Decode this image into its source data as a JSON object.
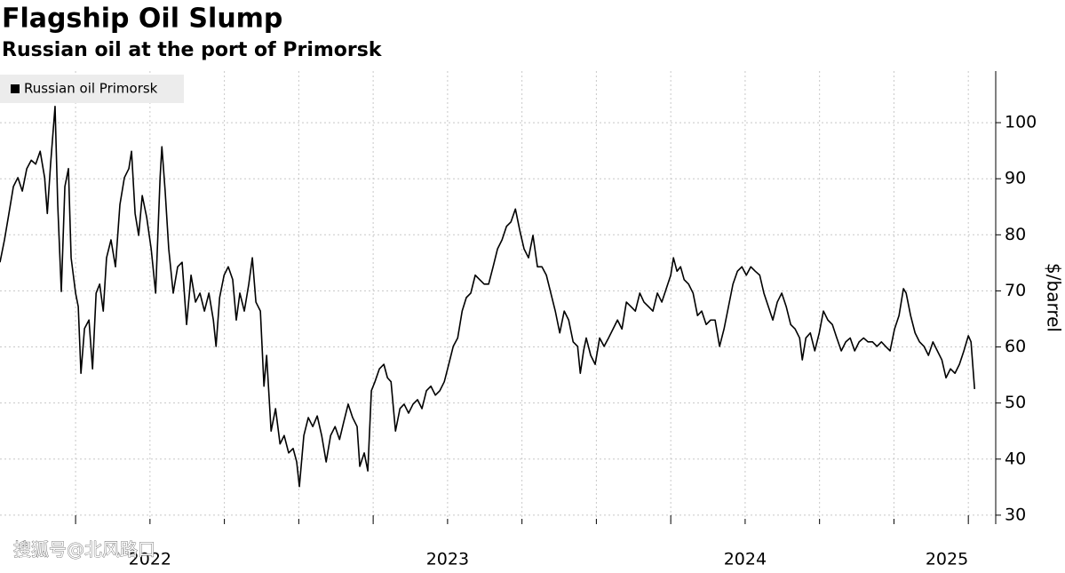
{
  "chart_data": {
    "type": "line",
    "title": "Flagship Oil Slump",
    "subtitle": "Russian oil at the port of Primorsk",
    "y_label": "$/barrel",
    "watermark": "搜狐号@北风路口",
    "xlim": [
      2021.746,
      2025.092
    ],
    "xticks": [
      2022,
      2023,
      2024,
      2025
    ],
    "x_minor_ticks": [
      2022.25,
      2022.5,
      2022.75,
      2023.25,
      2023.5,
      2023.75,
      2024.25,
      2024.5,
      2024.75
    ],
    "ylim": [
      28.4,
      109.2
    ],
    "yticks": [
      30,
      40,
      50,
      60,
      70,
      80,
      90,
      100
    ],
    "grid": true,
    "y_axis_side": "right",
    "legend": "top-left",
    "x": [
      2021.746,
      2021.761,
      2021.776,
      2021.791,
      2021.806,
      2021.821,
      2021.836,
      2021.851,
      2021.866,
      2021.881,
      2021.896,
      2021.905,
      2021.916,
      2021.931,
      2021.94,
      2021.952,
      2021.964,
      2021.976,
      2021.985,
      2022.0,
      2022.009,
      2022.018,
      2022.03,
      2022.045,
      2022.057,
      2022.069,
      2022.081,
      2022.093,
      2022.104,
      2022.119,
      2022.134,
      2022.149,
      2022.164,
      2022.179,
      2022.188,
      2022.2,
      2022.212,
      2022.224,
      2022.239,
      2022.254,
      2022.269,
      2022.284,
      2022.29,
      2022.301,
      2022.313,
      2022.328,
      2022.343,
      2022.358,
      2022.373,
      2022.388,
      2022.403,
      2022.418,
      2022.433,
      2022.448,
      2022.463,
      2022.472,
      2022.484,
      2022.499,
      2022.513,
      2022.528,
      2022.54,
      2022.552,
      2022.567,
      2022.582,
      2022.594,
      2022.606,
      2022.621,
      2022.633,
      2022.642,
      2022.657,
      2022.672,
      2022.687,
      2022.701,
      2022.716,
      2022.731,
      2022.743,
      2022.752,
      2022.767,
      2022.782,
      2022.797,
      2022.812,
      2022.827,
      2022.842,
      2022.857,
      2022.872,
      2022.887,
      2022.901,
      2022.916,
      2022.931,
      2022.946,
      2022.955,
      2022.97,
      2022.982,
      2022.994,
      2023.006,
      2023.021,
      2023.036,
      2023.048,
      2023.06,
      2023.075,
      2023.09,
      2023.104,
      2023.119,
      2023.134,
      2023.149,
      2023.164,
      2023.179,
      2023.194,
      2023.209,
      2023.224,
      2023.239,
      2023.254,
      2023.269,
      2023.284,
      2023.299,
      2023.313,
      2023.328,
      2023.343,
      2023.358,
      2023.373,
      2023.388,
      2023.403,
      2023.418,
      2023.433,
      2023.448,
      2023.463,
      2023.478,
      2023.493,
      2023.507,
      2023.522,
      2023.537,
      2023.552,
      2023.567,
      2023.582,
      2023.597,
      2023.612,
      2023.627,
      2023.642,
      2023.657,
      2023.672,
      2023.687,
      2023.696,
      2023.707,
      2023.716,
      2023.731,
      2023.746,
      2023.761,
      2023.776,
      2023.791,
      2023.806,
      2023.821,
      2023.836,
      2023.851,
      2023.866,
      2023.881,
      2023.896,
      2023.91,
      2023.925,
      2023.94,
      2023.955,
      2023.97,
      2023.985,
      2024.0,
      2024.009,
      2024.021,
      2024.033,
      2024.045,
      2024.06,
      2024.075,
      2024.09,
      2024.104,
      2024.119,
      2024.134,
      2024.149,
      2024.164,
      2024.179,
      2024.194,
      2024.209,
      2024.224,
      2024.239,
      2024.254,
      2024.269,
      2024.284,
      2024.299,
      2024.313,
      2024.328,
      2024.343,
      2024.358,
      2024.373,
      2024.388,
      2024.403,
      2024.418,
      2024.433,
      2024.442,
      2024.454,
      2024.469,
      2024.484,
      2024.499,
      2024.513,
      2024.528,
      2024.543,
      2024.558,
      2024.573,
      2024.588,
      2024.603,
      2024.618,
      2024.633,
      2024.648,
      2024.663,
      2024.678,
      2024.693,
      2024.708,
      2024.722,
      2024.737,
      2024.752,
      2024.767,
      2024.782,
      2024.791,
      2024.806,
      2024.821,
      2024.836,
      2024.851,
      2024.866,
      2024.881,
      2024.896,
      2024.911,
      2024.925,
      2024.94,
      2024.955,
      2024.97,
      2024.985,
      2025.0,
      2025.009,
      2025.021
    ],
    "series": [
      {
        "name": "Russian oil Primorsk",
        "color": "#000000",
        "values": [
          75.1,
          79.1,
          83.8,
          88.6,
          90.2,
          87.8,
          91.8,
          93.3,
          92.6,
          94.9,
          90.2,
          83.8,
          92.6,
          102.9,
          85.4,
          69.9,
          88.6,
          91.8,
          75.9,
          69.6,
          67.2,
          55.3,
          63.3,
          64.8,
          56.1,
          69.6,
          71.2,
          66.4,
          75.9,
          79.1,
          74.3,
          85.4,
          90.2,
          91.8,
          94.9,
          83.8,
          79.9,
          87.0,
          83.1,
          77.5,
          69.6,
          90.2,
          95.7,
          87.8,
          77.5,
          69.6,
          74.3,
          75.1,
          64.0,
          72.8,
          68.0,
          69.6,
          66.4,
          69.6,
          64.8,
          60.1,
          68.8,
          72.8,
          74.3,
          72.0,
          64.8,
          69.6,
          66.4,
          71.2,
          75.9,
          68.0,
          66.4,
          53.0,
          58.5,
          45.0,
          49.0,
          42.7,
          44.2,
          41.1,
          41.9,
          39.5,
          35.1,
          44.2,
          47.4,
          45.8,
          47.7,
          44.2,
          39.5,
          44.2,
          45.8,
          43.5,
          46.6,
          49.8,
          47.4,
          45.8,
          38.7,
          41.1,
          37.9,
          52.2,
          53.8,
          56.1,
          56.9,
          54.5,
          53.8,
          45.0,
          49.0,
          49.8,
          48.2,
          49.8,
          50.6,
          49.0,
          52.2,
          53.0,
          51.4,
          52.2,
          53.8,
          56.9,
          60.1,
          61.6,
          66.4,
          68.8,
          69.6,
          72.8,
          72.0,
          71.2,
          71.2,
          74.3,
          77.5,
          79.1,
          81.5,
          82.3,
          84.6,
          80.7,
          77.5,
          75.9,
          79.9,
          74.3,
          74.3,
          72.8,
          69.6,
          66.4,
          62.5,
          66.4,
          64.8,
          60.9,
          60.1,
          55.3,
          59.3,
          61.6,
          58.5,
          56.9,
          61.6,
          60.1,
          61.6,
          63.2,
          64.8,
          63.2,
          68.0,
          67.2,
          66.4,
          69.6,
          68.0,
          67.2,
          66.4,
          69.6,
          68.0,
          70.4,
          72.8,
          75.9,
          73.5,
          74.3,
          72.0,
          71.2,
          69.6,
          65.6,
          66.4,
          64.0,
          64.8,
          64.8,
          60.1,
          63.2,
          67.2,
          71.2,
          73.5,
          74.3,
          72.8,
          74.3,
          73.5,
          72.8,
          69.6,
          67.2,
          64.8,
          68.0,
          69.6,
          67.2,
          64.0,
          63.2,
          61.6,
          57.7,
          61.6,
          62.5,
          59.3,
          62.5,
          66.4,
          64.8,
          64.0,
          61.6,
          59.3,
          60.9,
          61.6,
          59.3,
          60.9,
          61.6,
          60.9,
          60.9,
          60.1,
          60.9,
          60.1,
          59.3,
          63.2,
          65.6,
          70.4,
          69.6,
          65.6,
          62.5,
          60.9,
          60.1,
          58.5,
          60.9,
          59.3,
          57.7,
          54.5,
          56.1,
          55.3,
          56.9,
          59.3,
          62.0,
          60.9,
          52.5
        ]
      }
    ]
  }
}
